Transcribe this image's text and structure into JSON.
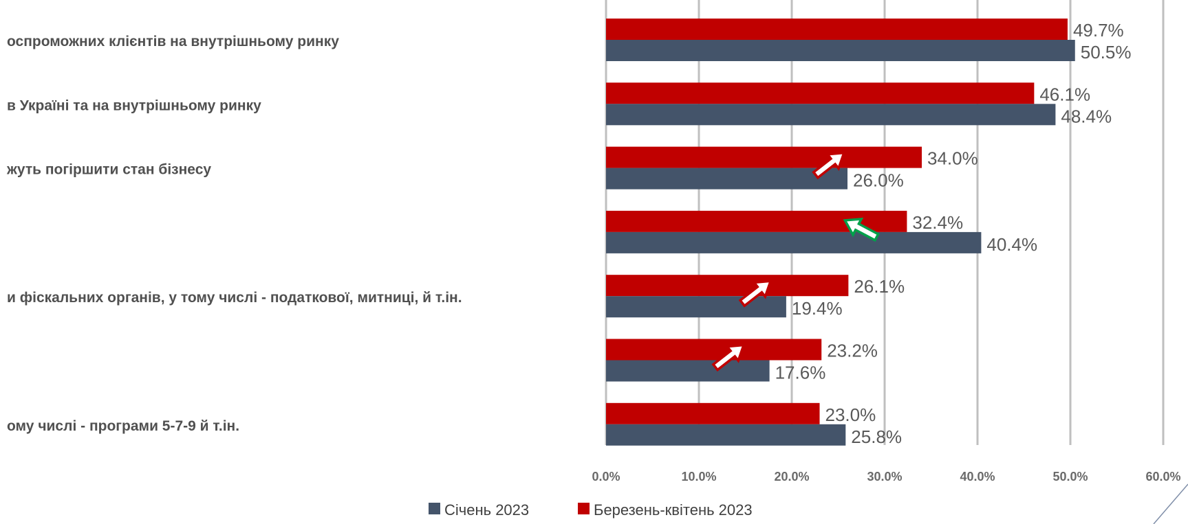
{
  "chart_data": {
    "type": "bar",
    "orientation": "horizontal",
    "categories": [
      "оспроможних клієнтів на внутрішньому ринку",
      "в Україні та на внутрішньому ринку",
      "жуть погіршити стан бізнесу",
      "",
      "и фіскальних органів, у тому числі - податкової, митниці, й т.ін.",
      "",
      "ому числі - програми 5-7-9 й т.ін."
    ],
    "series": [
      {
        "name": "Січень 2023",
        "color": "#44546a",
        "values": [
          50.5,
          48.4,
          26.0,
          40.4,
          19.4,
          17.6,
          25.8
        ],
        "labels": [
          "50.5%",
          "48.4%",
          "26.0%",
          "40.4%",
          "19.4%",
          "17.6%",
          "25.8%"
        ]
      },
      {
        "name": "Березень-квітень 2023",
        "color": "#c00000",
        "values": [
          49.7,
          46.1,
          34.0,
          32.4,
          26.1,
          23.2,
          23.0
        ],
        "labels": [
          "49.7%",
          "46.1%",
          "34.0%",
          "32.4%",
          "26.1%",
          "23.2%",
          "23.0%"
        ]
      }
    ],
    "xlim": [
      0,
      60
    ],
    "x_ticks": [
      "0.0%",
      "10.0%",
      "20.0%",
      "30.0%",
      "40.0%",
      "50.0%",
      "60.0%"
    ],
    "grid": "vertical",
    "legend": "bottom-center",
    "annotations": [
      {
        "category_index": 2,
        "direction": "increase",
        "color": "#c00000"
      },
      {
        "category_index": 3,
        "direction": "decrease",
        "color": "#00a04a"
      },
      {
        "category_index": 4,
        "direction": "increase",
        "color": "#c00000"
      },
      {
        "category_index": 5,
        "direction": "increase",
        "color": "#c00000"
      }
    ]
  }
}
